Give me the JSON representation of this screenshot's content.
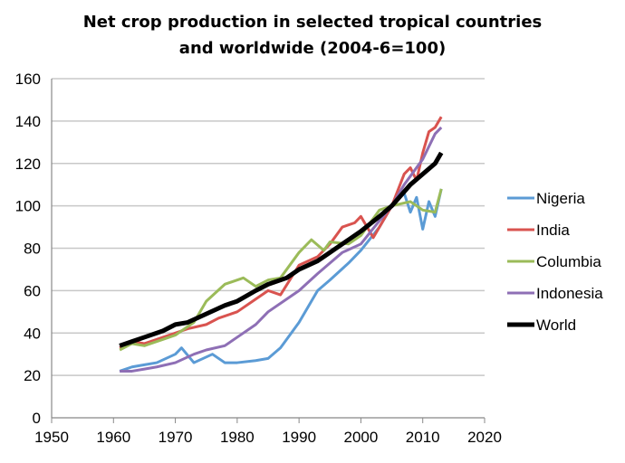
{
  "chart_data": {
    "type": "line",
    "title_lines": [
      "Net crop production in selected tropical countries",
      "and worldwide (2004-6=100)"
    ],
    "xlim": [
      1950,
      2020
    ],
    "ylim": [
      0,
      160
    ],
    "xticks": [
      1950,
      1960,
      1970,
      1980,
      1990,
      2000,
      2010,
      2020
    ],
    "yticks": [
      0,
      20,
      40,
      60,
      80,
      100,
      120,
      140,
      160
    ],
    "grid": "horizontal",
    "legend": "right",
    "series": [
      {
        "name": "Nigeria",
        "color": "#5b9bd5",
        "width": 3,
        "points": [
          [
            1961,
            22
          ],
          [
            1963,
            24
          ],
          [
            1965,
            25
          ],
          [
            1967,
            26
          ],
          [
            1970,
            30
          ],
          [
            1971,
            33
          ],
          [
            1973,
            26
          ],
          [
            1976,
            30
          ],
          [
            1978,
            26
          ],
          [
            1980,
            26
          ],
          [
            1983,
            27
          ],
          [
            1985,
            28
          ],
          [
            1987,
            33
          ],
          [
            1990,
            45
          ],
          [
            1993,
            60
          ],
          [
            1995,
            65
          ],
          [
            1998,
            73
          ],
          [
            2000,
            79
          ],
          [
            2003,
            90
          ],
          [
            2005,
            100
          ],
          [
            2007,
            106
          ],
          [
            2008,
            97
          ],
          [
            2009,
            104
          ],
          [
            2010,
            89
          ],
          [
            2011,
            102
          ],
          [
            2012,
            95
          ],
          [
            2013,
            108
          ]
        ]
      },
      {
        "name": "India",
        "color": "#d9534f",
        "width": 3,
        "points": [
          [
            1961,
            33
          ],
          [
            1963,
            36
          ],
          [
            1965,
            35
          ],
          [
            1967,
            37
          ],
          [
            1970,
            40
          ],
          [
            1972,
            42
          ],
          [
            1975,
            44
          ],
          [
            1977,
            47
          ],
          [
            1980,
            50
          ],
          [
            1983,
            56
          ],
          [
            1985,
            60
          ],
          [
            1987,
            58
          ],
          [
            1990,
            72
          ],
          [
            1993,
            76
          ],
          [
            1995,
            82
          ],
          [
            1997,
            90
          ],
          [
            1999,
            92
          ],
          [
            2000,
            95
          ],
          [
            2002,
            85
          ],
          [
            2005,
            100
          ],
          [
            2007,
            115
          ],
          [
            2008,
            118
          ],
          [
            2009,
            112
          ],
          [
            2010,
            125
          ],
          [
            2011,
            135
          ],
          [
            2012,
            137
          ],
          [
            2013,
            142
          ]
        ]
      },
      {
        "name": "Columbia",
        "color": "#9bbb59",
        "width": 3,
        "points": [
          [
            1961,
            32
          ],
          [
            1963,
            35
          ],
          [
            1965,
            34
          ],
          [
            1968,
            37
          ],
          [
            1970,
            39
          ],
          [
            1973,
            45
          ],
          [
            1975,
            55
          ],
          [
            1978,
            63
          ],
          [
            1981,
            66
          ],
          [
            1983,
            62
          ],
          [
            1985,
            65
          ],
          [
            1987,
            66
          ],
          [
            1990,
            78
          ],
          [
            1992,
            84
          ],
          [
            1994,
            79
          ],
          [
            1995,
            83
          ],
          [
            1998,
            82
          ],
          [
            2000,
            86
          ],
          [
            2003,
            98
          ],
          [
            2005,
            100
          ],
          [
            2008,
            102
          ],
          [
            2010,
            98
          ],
          [
            2012,
            97
          ],
          [
            2013,
            108
          ]
        ]
      },
      {
        "name": "Indonesia",
        "color": "#8e6fb5",
        "width": 3,
        "points": [
          [
            1961,
            22
          ],
          [
            1963,
            22
          ],
          [
            1965,
            23
          ],
          [
            1967,
            24
          ],
          [
            1970,
            26
          ],
          [
            1973,
            30
          ],
          [
            1975,
            32
          ],
          [
            1978,
            34
          ],
          [
            1980,
            38
          ],
          [
            1983,
            44
          ],
          [
            1985,
            50
          ],
          [
            1988,
            56
          ],
          [
            1990,
            60
          ],
          [
            1993,
            68
          ],
          [
            1995,
            73
          ],
          [
            1997,
            78
          ],
          [
            2000,
            82
          ],
          [
            2003,
            93
          ],
          [
            2005,
            100
          ],
          [
            2007,
            110
          ],
          [
            2010,
            122
          ],
          [
            2012,
            134
          ],
          [
            2013,
            137
          ]
        ]
      },
      {
        "name": "World",
        "color": "#000000",
        "width": 5,
        "points": [
          [
            1961,
            34
          ],
          [
            1963,
            36
          ],
          [
            1965,
            38
          ],
          [
            1968,
            41
          ],
          [
            1970,
            44
          ],
          [
            1972,
            45
          ],
          [
            1975,
            49
          ],
          [
            1978,
            53
          ],
          [
            1980,
            55
          ],
          [
            1983,
            60
          ],
          [
            1985,
            63
          ],
          [
            1988,
            66
          ],
          [
            1990,
            70
          ],
          [
            1993,
            74
          ],
          [
            1995,
            78
          ],
          [
            1998,
            84
          ],
          [
            2000,
            88
          ],
          [
            2003,
            95
          ],
          [
            2005,
            100
          ],
          [
            2008,
            110
          ],
          [
            2010,
            115
          ],
          [
            2012,
            120
          ],
          [
            2013,
            125
          ]
        ]
      }
    ]
  }
}
